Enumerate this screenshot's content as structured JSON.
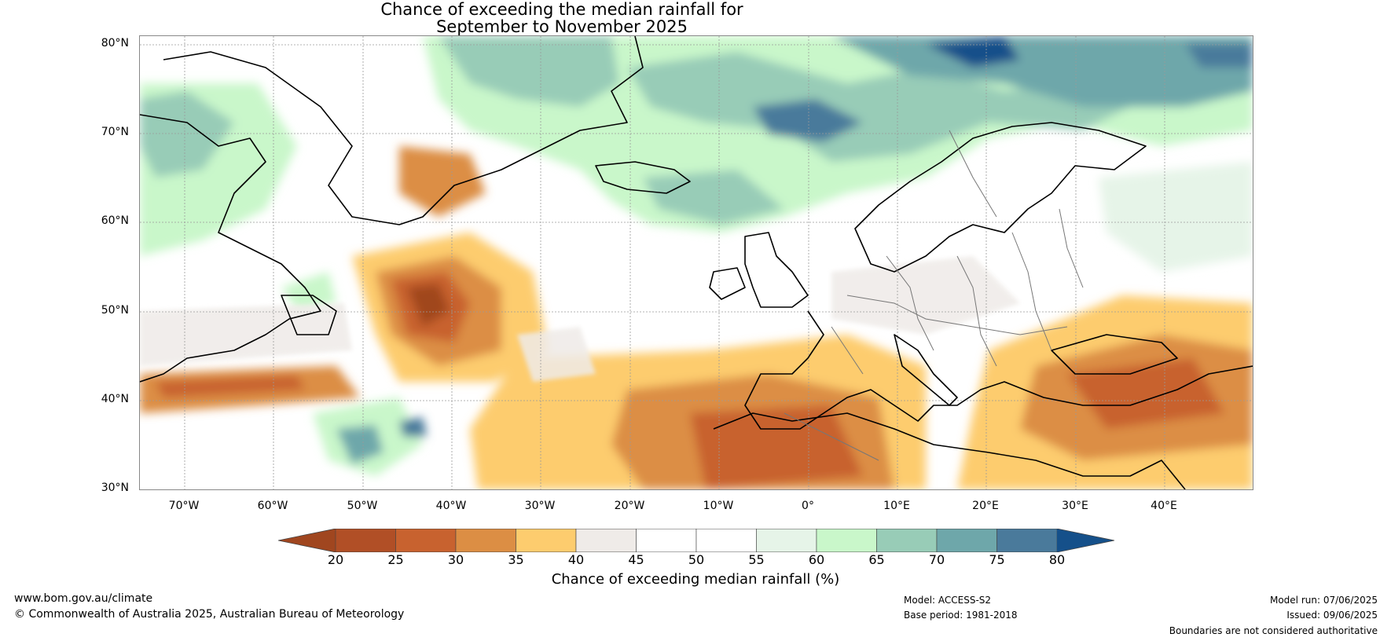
{
  "title_line1": "Chance of exceeding the median rainfall for",
  "title_line2": "September to November 2025",
  "lat_labels": [
    "80°N",
    "70°N",
    "60°N",
    "50°N",
    "40°N",
    "30°N"
  ],
  "lon_labels": [
    "70°W",
    "60°W",
    "50°W",
    "40°W",
    "30°W",
    "20°W",
    "10°W",
    "0°",
    "10°E",
    "20°E",
    "30°E",
    "40°E"
  ],
  "colorbar": {
    "ticks": [
      "20",
      "25",
      "30",
      "35",
      "40",
      "45",
      "50",
      "55",
      "60",
      "65",
      "70",
      "75",
      "80"
    ],
    "colors": [
      "#a0461f",
      "#b14f26",
      "#c8622f",
      "#dc8e44",
      "#fdcc6e",
      "#efebe8",
      "#ffffff",
      "#ffffff",
      "#e6f4e8",
      "#c9f7ca",
      "#98ccb7",
      "#6ea7aa",
      "#4a7a9b",
      "#15508a"
    ],
    "label": "Chance of exceeding median rainfall (%)"
  },
  "footer": {
    "website": "www.bom.gov.au/climate",
    "copyright": "© Commonwealth of Australia 2025, Australian Bureau of Meteorology",
    "model": "Model: ACCESS-S2",
    "base_period": "Base period: 1981-2018",
    "model_run": "Model run: 07/06/2025",
    "issued": "Issued: 09/06/2025",
    "disclaimer": "Boundaries are not considered authoritative"
  }
}
